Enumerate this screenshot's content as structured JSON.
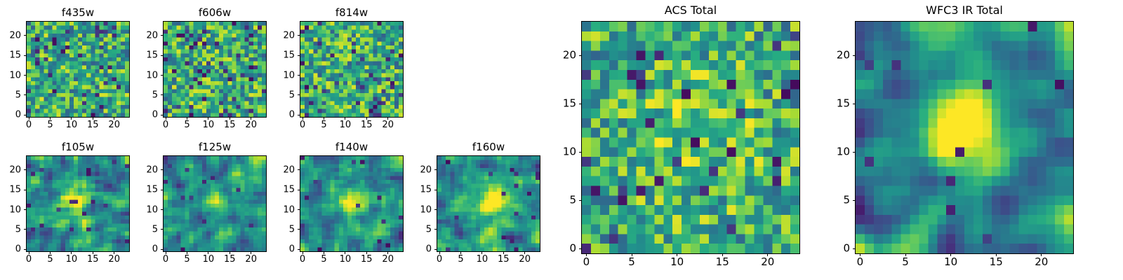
{
  "figure": {
    "background": "#ffffff",
    "axes_color": "#000000",
    "text_color": "#000000"
  },
  "chart_data": {
    "type": "heatmap",
    "colormap": "viridis",
    "colormap_stops": [
      "#440154",
      "#472d7b",
      "#3b528b",
      "#2c718e",
      "#21918c",
      "#27ad81",
      "#5cc863",
      "#aadc32",
      "#fde725"
    ],
    "grid_size": 24,
    "x_ticks": [
      0,
      5,
      10,
      15,
      20
    ],
    "y_ticks": [
      0,
      5,
      10,
      15,
      20
    ],
    "x_range": [
      -0.5,
      23.5
    ],
    "y_range": [
      -0.5,
      23.5
    ],
    "grid": false,
    "legend": "none",
    "panels": [
      {
        "title": "f435w",
        "seed": 101,
        "smooth": 0,
        "base": 0.3,
        "range": 0.65,
        "dark_prob": 0.07,
        "blob": null
      },
      {
        "title": "f606w",
        "seed": 202,
        "smooth": 0,
        "base": 0.3,
        "range": 0.65,
        "dark_prob": 0.07,
        "blob": null
      },
      {
        "title": "f814w",
        "seed": 303,
        "smooth": 0,
        "base": 0.3,
        "range": 0.65,
        "dark_prob": 0.06,
        "blob": null
      },
      {
        "title": "f105w",
        "seed": 404,
        "smooth": 1,
        "base": 0.12,
        "range": 0.78,
        "dark_prob": 0.03,
        "blob": {
          "cx": 11,
          "cy": 12,
          "sigma": 2.6,
          "amp": 0.5
        }
      },
      {
        "title": "f125w",
        "seed": 505,
        "smooth": 1,
        "base": 0.12,
        "range": 0.78,
        "dark_prob": 0.03,
        "blob": {
          "cx": 12,
          "cy": 12,
          "sigma": 2.6,
          "amp": 0.42
        }
      },
      {
        "title": "f140w",
        "seed": 606,
        "smooth": 1,
        "base": 0.12,
        "range": 0.78,
        "dark_prob": 0.03,
        "blob": {
          "cx": 12,
          "cy": 12,
          "sigma": 2.6,
          "amp": 0.48
        }
      },
      {
        "title": "f160w",
        "seed": 707,
        "smooth": 1,
        "base": 0.12,
        "range": 0.78,
        "dark_prob": 0.03,
        "blob": {
          "cx": 12,
          "cy": 12,
          "sigma": 2.6,
          "amp": 0.52
        }
      },
      {
        "title": "ACS Total",
        "seed": 808,
        "smooth": 0,
        "base": 0.32,
        "range": 0.62,
        "dark_prob": 0.05,
        "blob": {
          "cx": 12,
          "cy": 11,
          "sigma": 4.5,
          "amp": 0.15
        }
      },
      {
        "title": "WFC3 IR Total",
        "seed": 909,
        "smooth": 2,
        "base": 0.08,
        "range": 0.82,
        "dark_prob": 0.02,
        "blob": {
          "cx": 12,
          "cy": 12.5,
          "sigma": 2.9,
          "amp": 0.75
        }
      }
    ]
  }
}
